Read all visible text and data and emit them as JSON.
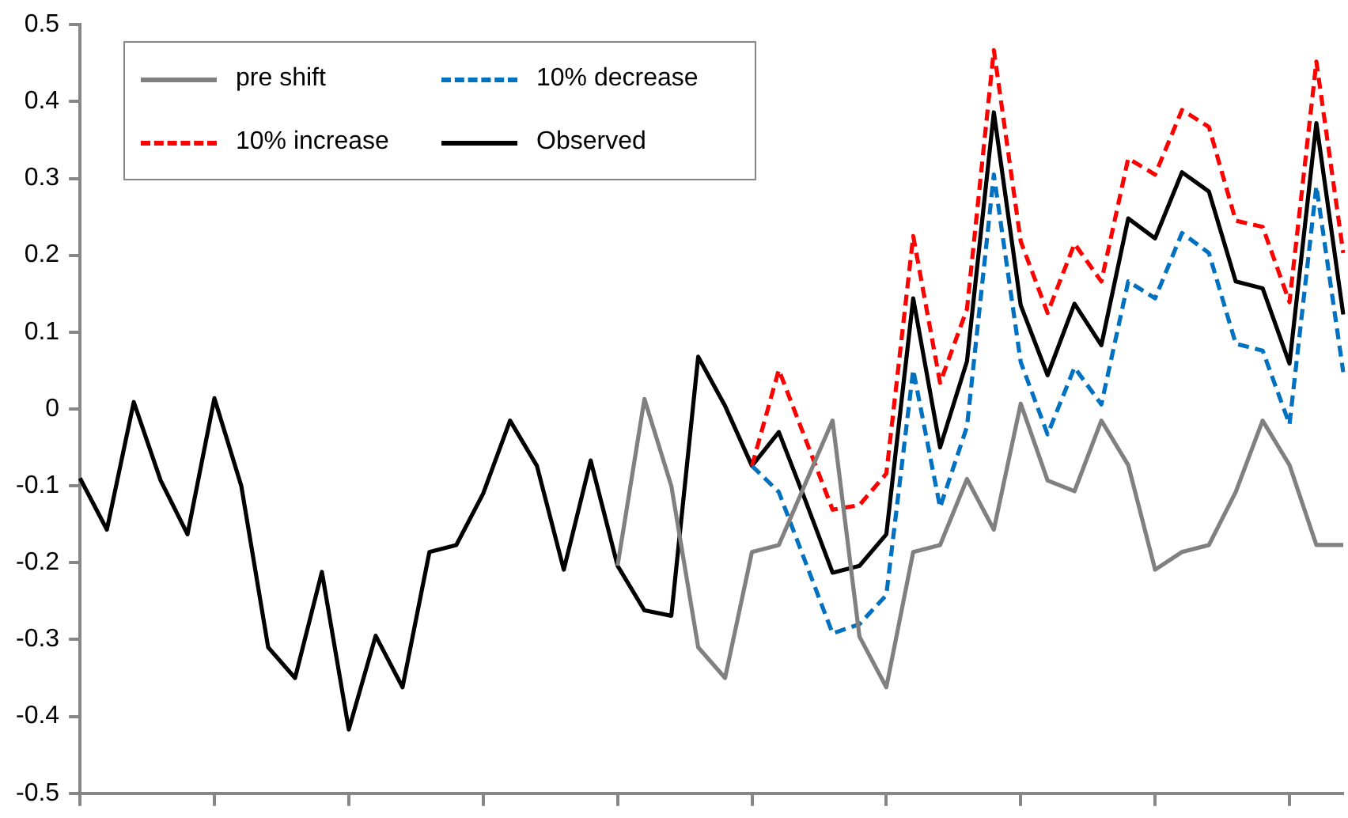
{
  "chart_data": {
    "type": "line",
    "categories": [
      null,
      null,
      null,
      null,
      null,
      null,
      null,
      null,
      null,
      null,
      null,
      null,
      null,
      null,
      null,
      null,
      null,
      null,
      null,
      null,
      null,
      null,
      null,
      null,
      null,
      null,
      null,
      null,
      null,
      null,
      null,
      null,
      null,
      null,
      null,
      null,
      null,
      null,
      null,
      null,
      null,
      null,
      null,
      null,
      null,
      null,
      null,
      null
    ],
    "ylim": [
      -0.5,
      0.5
    ],
    "yticks": [
      -0.5,
      -0.4,
      -0.3,
      -0.2,
      -0.1,
      0,
      0.1,
      0.2,
      0.3,
      0.4,
      0.5
    ],
    "grid": false,
    "legend": "top left",
    "tick_labels": "y",
    "marker": "none",
    "series": [
      {
        "name": "pre shift",
        "color": "#808080",
        "line_style": "solid",
        "values": [
          null,
          null,
          null,
          null,
          null,
          null,
          null,
          null,
          null,
          null,
          null,
          null,
          null,
          null,
          null,
          null,
          null,
          null,
          null,
          null,
          -0.204,
          0.013,
          -0.1,
          -0.31,
          -0.35,
          -0.186,
          -0.177,
          -0.096,
          -0.015,
          -0.296,
          -0.362,
          -0.186,
          -0.177,
          -0.091,
          -0.157,
          0.007,
          -0.093,
          -0.107,
          -0.015,
          -0.073,
          -0.209,
          -0.186,
          -0.177,
          -0.108,
          -0.015,
          -0.073,
          -0.177,
          -0.177
        ]
      },
      {
        "name": "10% decrease",
        "color": "#0070c0",
        "line_style": "dashed",
        "values": [
          null,
          null,
          null,
          null,
          null,
          null,
          null,
          null,
          null,
          null,
          null,
          null,
          null,
          null,
          null,
          null,
          null,
          null,
          null,
          null,
          null,
          null,
          null,
          null,
          null,
          -0.074,
          -0.108,
          -0.2,
          -0.292,
          -0.28,
          -0.242,
          0.051,
          -0.128,
          -0.023,
          0.305,
          0.061,
          -0.033,
          0.054,
          0.006,
          0.166,
          0.144,
          0.229,
          0.203,
          0.085,
          0.076,
          -0.02,
          0.29,
          0.048
        ]
      },
      {
        "name": "10% increase",
        "color": "#ff0000",
        "line_style": "dashed",
        "values": [
          null,
          null,
          null,
          null,
          null,
          null,
          null,
          null,
          null,
          null,
          null,
          null,
          null,
          null,
          null,
          null,
          null,
          null,
          null,
          null,
          null,
          null,
          null,
          null,
          null,
          -0.074,
          0.051,
          -0.04,
          -0.131,
          -0.125,
          -0.084,
          0.225,
          0.034,
          0.13,
          0.467,
          0.218,
          0.125,
          0.215,
          0.166,
          0.326,
          0.305,
          0.389,
          0.367,
          0.245,
          0.237,
          0.139,
          0.452,
          0.203
        ]
      },
      {
        "name": "Observed",
        "color": "#000000",
        "line_style": "solid",
        "values": [
          -0.09,
          -0.157,
          0.009,
          -0.093,
          -0.163,
          0.014,
          -0.1,
          -0.31,
          -0.35,
          -0.212,
          -0.417,
          -0.295,
          -0.362,
          -0.186,
          -0.177,
          -0.11,
          -0.015,
          -0.074,
          -0.209,
          -0.067,
          -0.204,
          -0.262,
          -0.269,
          0.068,
          0.004,
          -0.074,
          -0.03,
          -0.12,
          -0.213,
          -0.204,
          -0.163,
          0.144,
          -0.05,
          0.062,
          0.386,
          0.135,
          0.044,
          0.137,
          0.083,
          0.248,
          0.222,
          0.308,
          0.283,
          0.166,
          0.157,
          0.059,
          0.372,
          0.123
        ]
      }
    ]
  }
}
